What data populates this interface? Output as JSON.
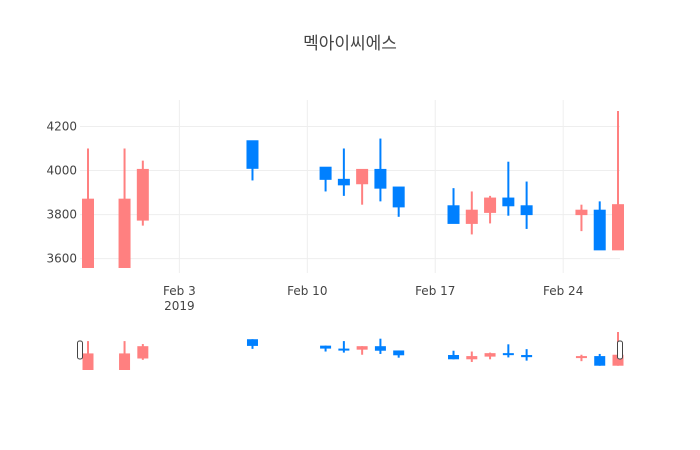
{
  "chart_data": {
    "type": "candlestick",
    "title": "멕아이씨에스",
    "y_ticks": [
      3600,
      3800,
      4000,
      4200
    ],
    "x_ticks": [
      {
        "date": "2019-02-03",
        "label": "Feb 3",
        "sublabel": "2019"
      },
      {
        "date": "2019-02-10",
        "label": "Feb 10",
        "sublabel": ""
      },
      {
        "date": "2019-02-17",
        "label": "Feb 17",
        "sublabel": ""
      },
      {
        "date": "2019-02-24",
        "label": "Feb 24",
        "sublabel": ""
      }
    ],
    "xlim": [
      "2019-01-29",
      "2019-02-27"
    ],
    "ylim": [
      3535,
      4320
    ],
    "increasing_color": "#ff8080",
    "decreasing_color": "#0080ff",
    "grid": true,
    "rangeslider": true,
    "candles": [
      {
        "date": "2019-01-29",
        "open": 3560,
        "high": 4100,
        "low": 3560,
        "close": 3870
      },
      {
        "date": "2019-01-31",
        "open": 3560,
        "high": 4100,
        "low": 3560,
        "close": 3870
      },
      {
        "date": "2019-02-01",
        "open": 3775,
        "high": 4045,
        "low": 3750,
        "close": 4005
      },
      {
        "date": "2019-02-07",
        "open": 4135,
        "high": 4135,
        "low": 3955,
        "close": 4010
      },
      {
        "date": "2019-02-11",
        "open": 4015,
        "high": 4015,
        "low": 3905,
        "close": 3960
      },
      {
        "date": "2019-02-12",
        "open": 3960,
        "high": 4100,
        "low": 3885,
        "close": 3935
      },
      {
        "date": "2019-02-13",
        "open": 3940,
        "high": 4005,
        "low": 3845,
        "close": 4005
      },
      {
        "date": "2019-02-14",
        "open": 4005,
        "high": 4145,
        "low": 3860,
        "close": 3920
      },
      {
        "date": "2019-02-15",
        "open": 3925,
        "high": 3925,
        "low": 3790,
        "close": 3835
      },
      {
        "date": "2019-02-18",
        "open": 3840,
        "high": 3920,
        "low": 3760,
        "close": 3760
      },
      {
        "date": "2019-02-19",
        "open": 3760,
        "high": 3905,
        "low": 3710,
        "close": 3820
      },
      {
        "date": "2019-02-20",
        "open": 3810,
        "high": 3885,
        "low": 3760,
        "close": 3875
      },
      {
        "date": "2019-02-21",
        "open": 3875,
        "high": 4040,
        "low": 3795,
        "close": 3840
      },
      {
        "date": "2019-02-22",
        "open": 3840,
        "high": 3950,
        "low": 3735,
        "close": 3800
      },
      {
        "date": "2019-02-25",
        "open": 3800,
        "high": 3845,
        "low": 3725,
        "close": 3820
      },
      {
        "date": "2019-02-26",
        "open": 3820,
        "high": 3860,
        "low": 3640,
        "close": 3640
      },
      {
        "date": "2019-02-27",
        "open": 3640,
        "high": 4270,
        "low": 3640,
        "close": 3845
      }
    ]
  }
}
